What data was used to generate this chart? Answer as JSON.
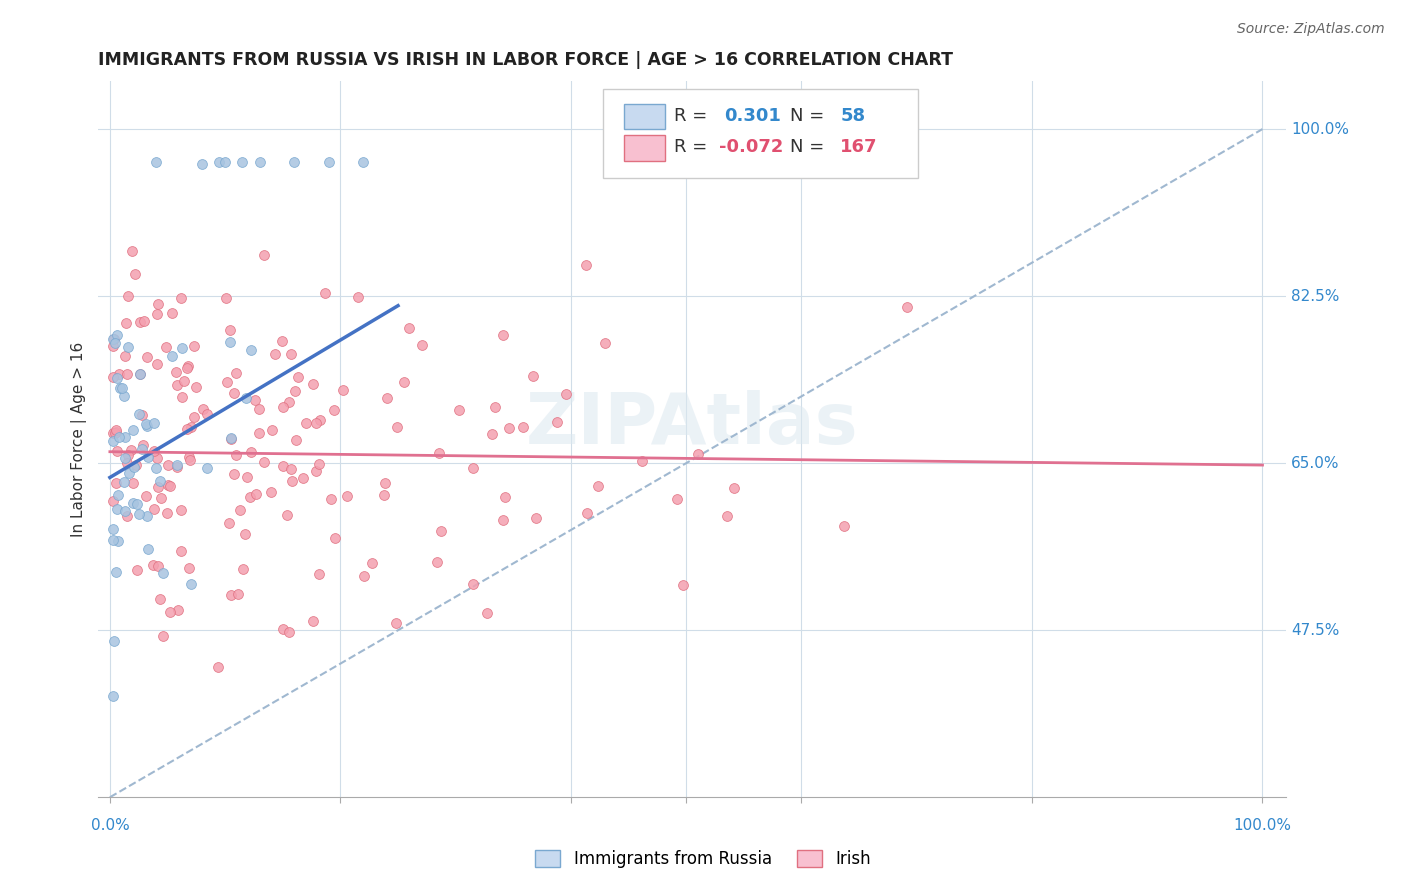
{
  "title": "IMMIGRANTS FROM RUSSIA VS IRISH IN LABOR FORCE | AGE > 16 CORRELATION CHART",
  "source": "Source: ZipAtlas.com",
  "ylabel": "In Labor Force | Age > 16",
  "russia_R": 0.301,
  "russia_N": 58,
  "irish_R": -0.072,
  "irish_N": 167,
  "russia_color": "#a8c4e0",
  "russia_edge": "#7aa8d0",
  "irish_color": "#f4a0b0",
  "irish_edge": "#e07080",
  "russia_line_color": "#4472c4",
  "irish_line_color": "#e07090",
  "dashed_line_color": "#a0b8d0",
  "background_color": "#ffffff",
  "ytick_vals": [
    0.475,
    0.65,
    0.825,
    1.0
  ],
  "ytick_labels": [
    "47.5%",
    "65.0%",
    "82.5%",
    "100.0%"
  ]
}
